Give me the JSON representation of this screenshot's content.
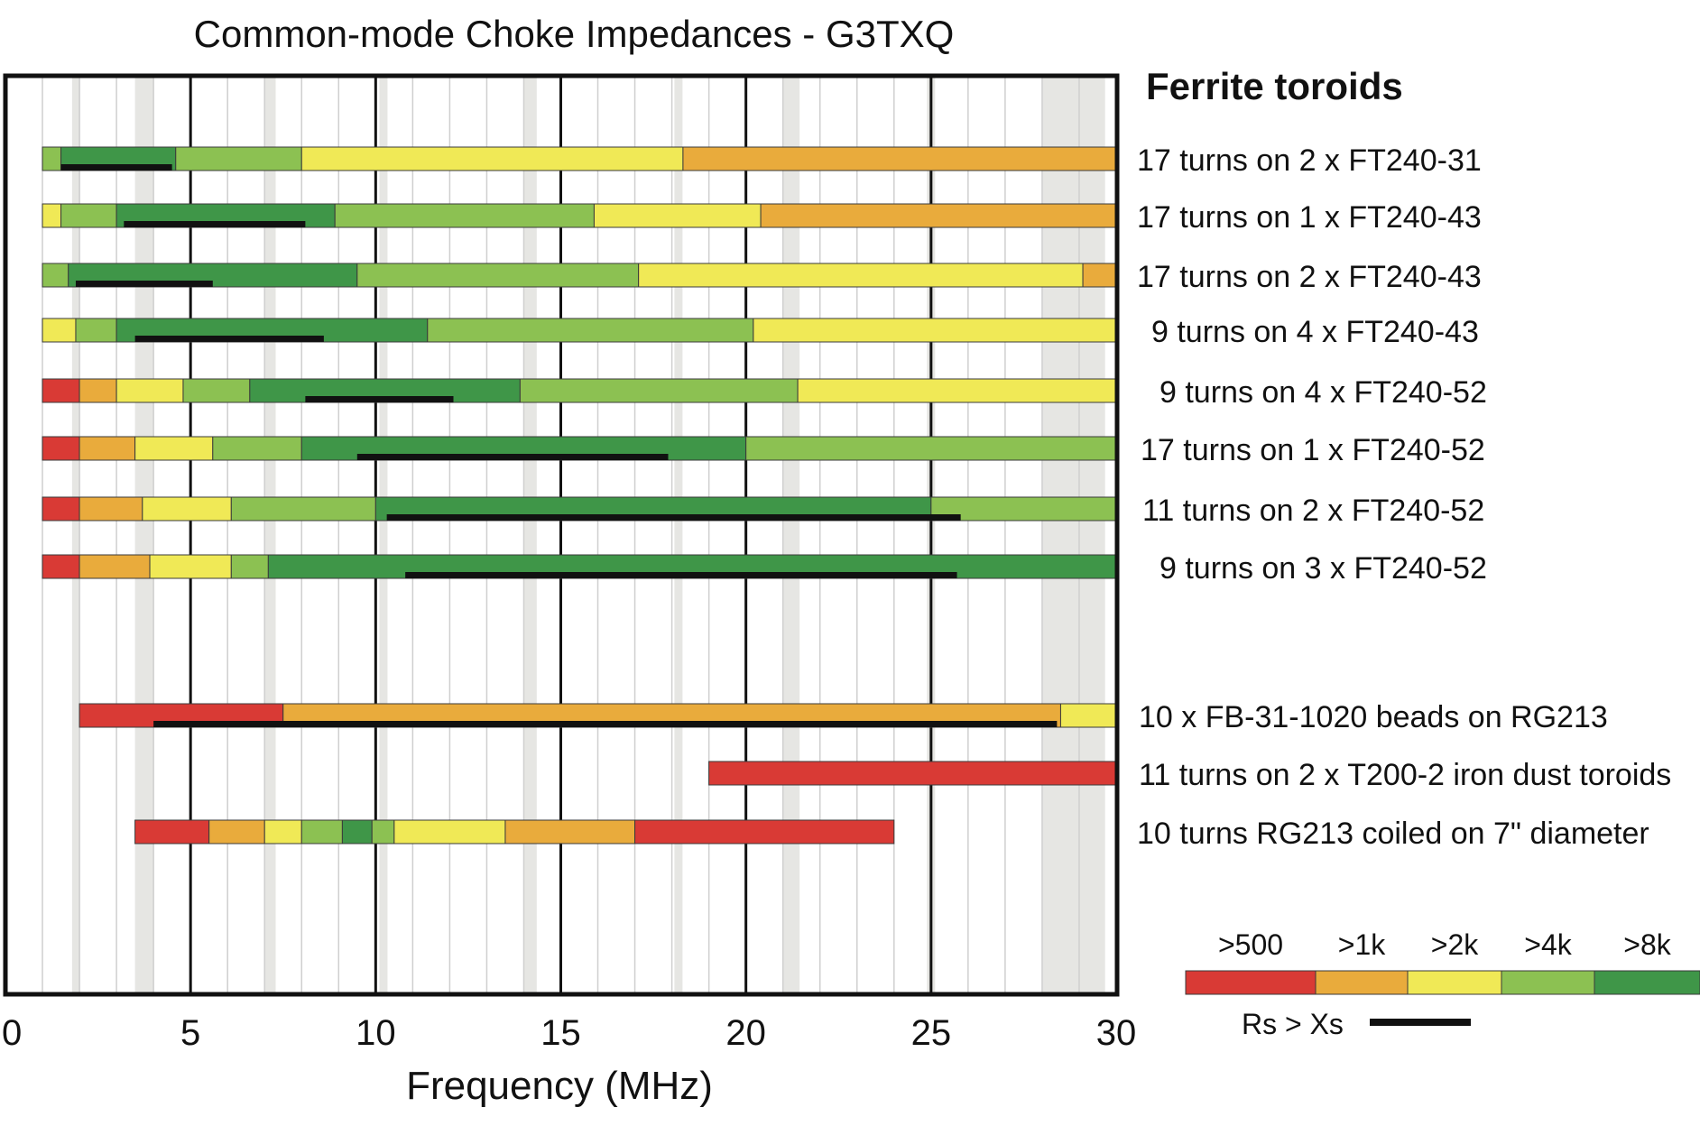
{
  "chart_data": {
    "type": "bar",
    "title": "Common-mode Choke Impedances - G3TXQ",
    "xlabel": "Frequency (MHz)",
    "xlim": [
      0,
      30
    ],
    "xticks": [
      0,
      5,
      10,
      15,
      20,
      25,
      30
    ],
    "xtick_labels": [
      "0",
      "5",
      "10",
      "15",
      "20",
      "25",
      "30"
    ],
    "grid": true,
    "amateur_bands_mhz": [
      [
        1.8,
        2.0
      ],
      [
        3.5,
        4.0
      ],
      [
        7.0,
        7.3
      ],
      [
        10.1,
        10.15
      ],
      [
        14.0,
        14.35
      ],
      [
        18.068,
        18.168
      ],
      [
        21.0,
        21.45
      ],
      [
        24.89,
        24.99
      ],
      [
        28.0,
        29.7
      ]
    ],
    "group_heading": "Ferrite toroids",
    "legend": {
      "placement": "bottom-right",
      "categories": [
        {
          "label": ">500",
          "color": "#d93a35"
        },
        {
          "label": ">1k",
          "color": "#e9ab3c"
        },
        {
          "label": ">2k",
          "color": "#f0e956"
        },
        {
          "label": ">4k",
          "color": "#8cc152"
        },
        {
          "label": ">8k",
          "color": "#3f9648"
        }
      ],
      "rs_label": "Rs > Xs"
    },
    "series": [
      {
        "name": "17 turns on 2 x FT240-31",
        "segments": [
          [
            1.0,
            1.5,
            ">4k"
          ],
          [
            1.5,
            4.6,
            ">8k"
          ],
          [
            4.6,
            8.0,
            ">4k"
          ],
          [
            8.0,
            18.3,
            ">2k"
          ],
          [
            18.3,
            30.0,
            ">1k"
          ]
        ],
        "rs_gt_xs": [
          1.5,
          4.5
        ]
      },
      {
        "name": "17 turns on 1 x FT240-43",
        "segments": [
          [
            1.0,
            1.5,
            ">2k"
          ],
          [
            1.5,
            3.0,
            ">4k"
          ],
          [
            3.0,
            8.9,
            ">8k"
          ],
          [
            8.9,
            15.9,
            ">4k"
          ],
          [
            15.9,
            20.4,
            ">2k"
          ],
          [
            20.4,
            30.0,
            ">1k"
          ]
        ],
        "rs_gt_xs": [
          3.2,
          8.1
        ]
      },
      {
        "name": "17 turns on 2 x FT240-43",
        "segments": [
          [
            1.0,
            1.7,
            ">4k"
          ],
          [
            1.7,
            9.5,
            ">8k"
          ],
          [
            9.5,
            17.1,
            ">4k"
          ],
          [
            17.1,
            29.1,
            ">2k"
          ],
          [
            29.1,
            30.0,
            ">1k"
          ]
        ],
        "rs_gt_xs": [
          1.9,
          5.6
        ]
      },
      {
        "name": "9 turns on 4 x FT240-43",
        "segments": [
          [
            1.0,
            1.9,
            ">2k"
          ],
          [
            1.9,
            3.0,
            ">4k"
          ],
          [
            3.0,
            11.4,
            ">8k"
          ],
          [
            11.4,
            20.2,
            ">4k"
          ],
          [
            20.2,
            30.0,
            ">2k"
          ]
        ],
        "rs_gt_xs": [
          3.5,
          8.6
        ]
      },
      {
        "name": "9 turns on 4 x FT240-52",
        "segments": [
          [
            1.0,
            2.0,
            ">500"
          ],
          [
            2.0,
            3.0,
            ">1k"
          ],
          [
            3.0,
            4.8,
            ">2k"
          ],
          [
            4.8,
            6.6,
            ">4k"
          ],
          [
            6.6,
            13.9,
            ">8k"
          ],
          [
            13.9,
            21.4,
            ">4k"
          ],
          [
            21.4,
            30.0,
            ">2k"
          ]
        ],
        "rs_gt_xs": [
          8.1,
          12.1
        ]
      },
      {
        "name": "17 turns on 1 x FT240-52",
        "segments": [
          [
            1.0,
            2.0,
            ">500"
          ],
          [
            2.0,
            3.5,
            ">1k"
          ],
          [
            3.5,
            5.6,
            ">2k"
          ],
          [
            5.6,
            8.0,
            ">4k"
          ],
          [
            8.0,
            20.0,
            ">8k"
          ],
          [
            20.0,
            30.0,
            ">4k"
          ]
        ],
        "rs_gt_xs": [
          9.5,
          17.9
        ]
      },
      {
        "name": "11 turns on 2 x FT240-52",
        "segments": [
          [
            1.0,
            2.0,
            ">500"
          ],
          [
            2.0,
            3.7,
            ">1k"
          ],
          [
            3.7,
            6.1,
            ">2k"
          ],
          [
            6.1,
            10.0,
            ">4k"
          ],
          [
            10.0,
            25.0,
            ">8k"
          ],
          [
            25.0,
            30.0,
            ">4k"
          ]
        ],
        "rs_gt_xs": [
          10.3,
          25.8
        ]
      },
      {
        "name": "9 turns on 3 x FT240-52",
        "segments": [
          [
            1.0,
            2.0,
            ">500"
          ],
          [
            2.0,
            3.9,
            ">1k"
          ],
          [
            3.9,
            6.1,
            ">2k"
          ],
          [
            6.1,
            7.1,
            ">4k"
          ],
          [
            7.1,
            30.0,
            ">8k"
          ]
        ],
        "rs_gt_xs": [
          10.8,
          25.7
        ]
      },
      {
        "name": "10 x FB-31-1020 beads on RG213",
        "segments": [
          [
            2.0,
            7.5,
            ">500"
          ],
          [
            7.5,
            28.5,
            ">1k"
          ],
          [
            28.5,
            30.0,
            ">2k"
          ]
        ],
        "rs_gt_xs": [
          4.0,
          28.4
        ]
      },
      {
        "name": "11 turns on 2 x T200-2 iron dust toroids",
        "segments": [
          [
            19.0,
            30.0,
            ">500"
          ]
        ],
        "rs_gt_xs": null
      },
      {
        "name": "10 turns RG213 coiled on 7\" diameter",
        "segments": [
          [
            3.5,
            5.5,
            ">500"
          ],
          [
            5.5,
            7.0,
            ">1k"
          ],
          [
            7.0,
            8.0,
            ">2k"
          ],
          [
            8.0,
            9.1,
            ">4k"
          ],
          [
            9.1,
            9.9,
            ">8k"
          ],
          [
            9.9,
            10.5,
            ">4k"
          ],
          [
            10.5,
            13.5,
            ">2k"
          ],
          [
            13.5,
            17.0,
            ">1k"
          ],
          [
            17.0,
            24.0,
            ">500"
          ]
        ],
        "rs_gt_xs": null
      }
    ]
  }
}
